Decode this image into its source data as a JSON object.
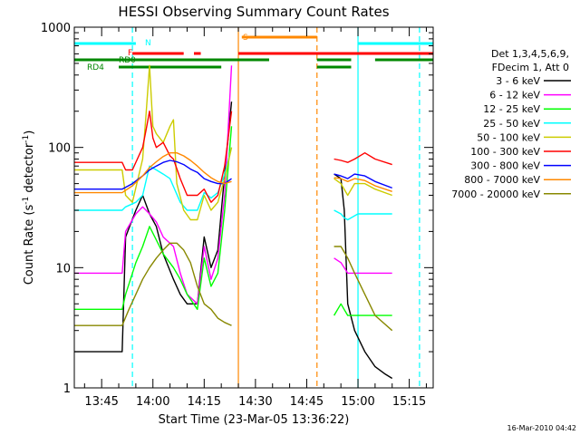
{
  "chart_data": {
    "type": "line",
    "title": "HESSI Observing Summary Count Rates",
    "xlabel": "Start Time (23-Mar-05 13:36:22)",
    "ylabel_main": "Count Rate (s",
    "ylabel_sup1": "-1",
    "ylabel_mid": " detector",
    "ylabel_sup2": "-1",
    "ylabel_end": ")",
    "y_scale": "log",
    "ylim": [
      1,
      1000
    ],
    "xlim_min": [
      817,
      922
    ],
    "x_ticks": [
      {
        "t": 825,
        "label": "13:45"
      },
      {
        "t": 840,
        "label": "14:00"
      },
      {
        "t": 855,
        "label": "14:15"
      },
      {
        "t": 870,
        "label": "14:30"
      },
      {
        "t": 885,
        "label": "14:45"
      },
      {
        "t": 900,
        "label": "15:00"
      },
      {
        "t": 915,
        "label": "15:15"
      }
    ],
    "y_ticks": [
      {
        "v": 1,
        "label": "1"
      },
      {
        "v": 10,
        "label": "10"
      },
      {
        "v": 100,
        "label": "100"
      },
      {
        "v": 1000,
        "label": "1000"
      }
    ],
    "legend": {
      "header1": "Det 1,3,4,5,6,9,",
      "header2": "FDecim 1, Att 0",
      "position": "right"
    },
    "series": [
      {
        "name": "3 - 6 keV",
        "color": "#000000",
        "points": [
          [
            817,
            2
          ],
          [
            831,
            2
          ],
          [
            832,
            18
          ],
          [
            835,
            30
          ],
          [
            837,
            40
          ],
          [
            839,
            28
          ],
          [
            841,
            22
          ],
          [
            843,
            13
          ],
          [
            846,
            8
          ],
          [
            848,
            6
          ],
          [
            850,
            5
          ],
          [
            853,
            5
          ],
          [
            855,
            18
          ],
          [
            857,
            10
          ],
          [
            859,
            14
          ],
          [
            861,
            60
          ],
          [
            863,
            240
          ],
          [
            863.5,
            null
          ],
          [
            893,
            60
          ],
          [
            895,
            55
          ],
          [
            896,
            30
          ],
          [
            897,
            5
          ],
          [
            899,
            3
          ],
          [
            902,
            2
          ],
          [
            905,
            1.5
          ],
          [
            908,
            1.3
          ],
          [
            910,
            1.2
          ]
        ]
      },
      {
        "name": "6 - 12 keV",
        "color": "#ff00ff",
        "points": [
          [
            817,
            9
          ],
          [
            831,
            9
          ],
          [
            832,
            20
          ],
          [
            835,
            28
          ],
          [
            837,
            32
          ],
          [
            839,
            28
          ],
          [
            841,
            24
          ],
          [
            843,
            18
          ],
          [
            846,
            15
          ],
          [
            848,
            9
          ],
          [
            850,
            6
          ],
          [
            853,
            5
          ],
          [
            855,
            15
          ],
          [
            857,
            8
          ],
          [
            859,
            12
          ],
          [
            861,
            40
          ],
          [
            863,
            480
          ],
          [
            863.5,
            null
          ],
          [
            893,
            12
          ],
          [
            895,
            11
          ],
          [
            897,
            9
          ],
          [
            899,
            9
          ],
          [
            902,
            9
          ],
          [
            905,
            9
          ],
          [
            910,
            9
          ]
        ]
      },
      {
        "name": "12 - 25 keV",
        "color": "#00ff00",
        "points": [
          [
            817,
            4.5
          ],
          [
            831,
            4.5
          ],
          [
            832,
            6
          ],
          [
            835,
            11
          ],
          [
            837,
            15
          ],
          [
            839,
            22
          ],
          [
            841,
            17
          ],
          [
            843,
            13
          ],
          [
            846,
            10
          ],
          [
            848,
            8
          ],
          [
            850,
            6
          ],
          [
            853,
            4.5
          ],
          [
            855,
            12
          ],
          [
            857,
            7
          ],
          [
            859,
            9
          ],
          [
            861,
            30
          ],
          [
            863,
            150
          ],
          [
            863.5,
            null
          ],
          [
            893,
            4
          ],
          [
            895,
            5
          ],
          [
            897,
            4
          ],
          [
            899,
            4
          ],
          [
            902,
            4
          ],
          [
            905,
            4
          ],
          [
            910,
            4
          ]
        ]
      },
      {
        "name": "25 - 50 keV",
        "color": "#00ffff",
        "points": [
          [
            817,
            30
          ],
          [
            831,
            30
          ],
          [
            832,
            32
          ],
          [
            835,
            35
          ],
          [
            837,
            40
          ],
          [
            839,
            70
          ],
          [
            841,
            65
          ],
          [
            843,
            60
          ],
          [
            845,
            55
          ],
          [
            848,
            35
          ],
          [
            850,
            30
          ],
          [
            853,
            30
          ],
          [
            855,
            42
          ],
          [
            857,
            38
          ],
          [
            859,
            42
          ],
          [
            861,
            60
          ],
          [
            863,
            100
          ],
          [
            863.5,
            null
          ],
          [
            893,
            30
          ],
          [
            895,
            28
          ],
          [
            896,
            26
          ],
          [
            897,
            25
          ],
          [
            900,
            28
          ],
          [
            905,
            28
          ],
          [
            910,
            28
          ]
        ]
      },
      {
        "name": "50 - 100 keV",
        "color": "#cccc00",
        "points": [
          [
            817,
            65
          ],
          [
            831,
            65
          ],
          [
            832,
            40
          ],
          [
            834,
            35
          ],
          [
            837,
            80
          ],
          [
            838,
            190
          ],
          [
            839,
            480
          ],
          [
            840,
            150
          ],
          [
            841,
            130
          ],
          [
            843,
            110
          ],
          [
            845,
            150
          ],
          [
            846,
            170
          ],
          [
            847,
            50
          ],
          [
            849,
            30
          ],
          [
            851,
            25
          ],
          [
            853,
            25
          ],
          [
            855,
            40
          ],
          [
            857,
            30
          ],
          [
            859,
            35
          ],
          [
            861,
            55
          ],
          [
            863,
            100
          ],
          [
            863.5,
            null
          ],
          [
            893,
            55
          ],
          [
            895,
            50
          ],
          [
            897,
            40
          ],
          [
            899,
            50
          ],
          [
            902,
            50
          ],
          [
            905,
            45
          ],
          [
            910,
            40
          ]
        ]
      },
      {
        "name": "100 - 300 keV",
        "color": "#ff0000",
        "points": [
          [
            817,
            75
          ],
          [
            831,
            75
          ],
          [
            832,
            65
          ],
          [
            834,
            65
          ],
          [
            837,
            100
          ],
          [
            838,
            140
          ],
          [
            839,
            200
          ],
          [
            840,
            120
          ],
          [
            841,
            100
          ],
          [
            843,
            110
          ],
          [
            845,
            85
          ],
          [
            846,
            80
          ],
          [
            848,
            55
          ],
          [
            850,
            40
          ],
          [
            853,
            40
          ],
          [
            855,
            45
          ],
          [
            857,
            35
          ],
          [
            859,
            40
          ],
          [
            861,
            70
          ],
          [
            863,
            200
          ],
          [
            863.5,
            null
          ],
          [
            893,
            80
          ],
          [
            895,
            78
          ],
          [
            897,
            75
          ],
          [
            899,
            80
          ],
          [
            902,
            90
          ],
          [
            905,
            80
          ],
          [
            910,
            72
          ]
        ]
      },
      {
        "name": "300 - 800 keV",
        "color": "#0000ff",
        "points": [
          [
            817,
            45
          ],
          [
            831,
            45
          ],
          [
            834,
            50
          ],
          [
            837,
            58
          ],
          [
            839,
            65
          ],
          [
            841,
            70
          ],
          [
            843,
            75
          ],
          [
            845,
            78
          ],
          [
            847,
            76
          ],
          [
            849,
            72
          ],
          [
            851,
            66
          ],
          [
            853,
            62
          ],
          [
            855,
            55
          ],
          [
            857,
            52
          ],
          [
            859,
            50
          ],
          [
            861,
            50
          ],
          [
            863,
            55
          ],
          [
            863.5,
            null
          ],
          [
            893,
            60
          ],
          [
            895,
            58
          ],
          [
            897,
            55
          ],
          [
            899,
            60
          ],
          [
            902,
            58
          ],
          [
            905,
            52
          ],
          [
            910,
            46
          ]
        ]
      },
      {
        "name": "800 - 7000 keV",
        "color": "#ff8800",
        "points": [
          [
            817,
            42
          ],
          [
            831,
            42
          ],
          [
            834,
            48
          ],
          [
            837,
            58
          ],
          [
            839,
            68
          ],
          [
            841,
            76
          ],
          [
            843,
            84
          ],
          [
            845,
            90
          ],
          [
            847,
            90
          ],
          [
            849,
            85
          ],
          [
            851,
            78
          ],
          [
            853,
            70
          ],
          [
            855,
            62
          ],
          [
            857,
            56
          ],
          [
            859,
            52
          ],
          [
            861,
            50
          ],
          [
            863,
            52
          ],
          [
            863.5,
            null
          ],
          [
            893,
            56
          ],
          [
            895,
            55
          ],
          [
            897,
            52
          ],
          [
            899,
            55
          ],
          [
            902,
            53
          ],
          [
            905,
            48
          ],
          [
            910,
            43
          ]
        ]
      },
      {
        "name": "7000 - 20000 keV",
        "color": "#888800",
        "points": [
          [
            817,
            3.3
          ],
          [
            831,
            3.3
          ],
          [
            833,
            4.5
          ],
          [
            835,
            6
          ],
          [
            837,
            8
          ],
          [
            839,
            10
          ],
          [
            841,
            12
          ],
          [
            843,
            14
          ],
          [
            845,
            16
          ],
          [
            847,
            16
          ],
          [
            849,
            14
          ],
          [
            851,
            11
          ],
          [
            853,
            7
          ],
          [
            855,
            5
          ],
          [
            857,
            4.5
          ],
          [
            859,
            3.8
          ],
          [
            861,
            3.5
          ],
          [
            863,
            3.3
          ],
          [
            863.5,
            null
          ],
          [
            893,
            15
          ],
          [
            895,
            15
          ],
          [
            897,
            12
          ],
          [
            899,
            9
          ],
          [
            902,
            6
          ],
          [
            905,
            4
          ],
          [
            910,
            3
          ]
        ]
      }
    ],
    "flags": [
      {
        "label": "N",
        "color": "#00ffff",
        "segments": [
          [
            817,
            835
          ],
          [
            900,
            922
          ]
        ]
      },
      {
        "label": "F",
        "color": "#ff0000",
        "segments": [
          [
            834,
            849
          ],
          [
            852,
            854
          ],
          [
            865,
            922
          ]
        ]
      },
      {
        "label": "S",
        "color": "#ff8800",
        "segments": [
          [
            866,
            888
          ]
        ]
      },
      {
        "label": "RD0",
        "color": "#008800",
        "segments": [
          [
            817,
            874
          ],
          [
            888,
            898
          ],
          [
            905,
            922
          ]
        ]
      },
      {
        "label": "RD4",
        "color": "#008800",
        "segments": [
          [
            830,
            860
          ],
          [
            888,
            898
          ]
        ]
      }
    ],
    "markers": [
      {
        "t": 834,
        "color": "#00ffff",
        "style": "dash"
      },
      {
        "t": 865,
        "color": "#ff8800",
        "style": "solid"
      },
      {
        "t": 888,
        "color": "#ff8800",
        "style": "dash"
      },
      {
        "t": 900,
        "color": "#00ffff",
        "style": "solid"
      },
      {
        "t": 918,
        "color": "#00ffff",
        "style": "dash"
      }
    ],
    "grid": false
  },
  "footer": {
    "timestamp": "16-Mar-2010 04:42"
  }
}
